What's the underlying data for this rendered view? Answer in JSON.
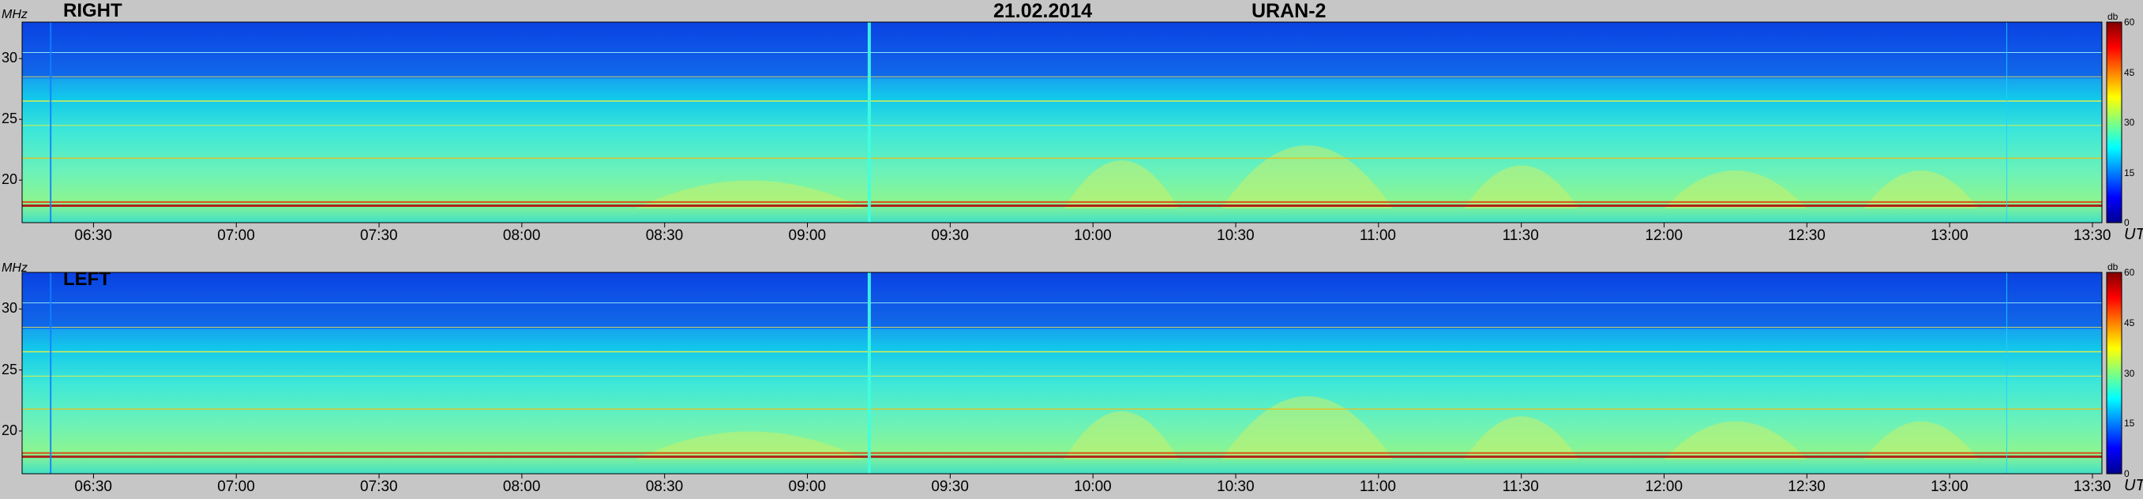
{
  "header": {
    "date": "21.02.2014",
    "instrument": "URAN-2"
  },
  "axis": {
    "y_label": "MHz",
    "x_label": "UT",
    "colorbar_label": "db"
  },
  "colors": {
    "background": "#c6c6c6",
    "colormap": [
      "#00008f",
      "#0000ff",
      "#0080ff",
      "#00ffff",
      "#80ff80",
      "#ffff00",
      "#ff8000",
      "#ff0000",
      "#800000"
    ]
  },
  "chart_data": [
    {
      "type": "heatmap",
      "panel_label": "RIGHT",
      "x_range": [
        "06:15",
        "13:32"
      ],
      "x_ticks": [
        "06:30",
        "07:00",
        "07:30",
        "08:00",
        "08:30",
        "09:00",
        "09:30",
        "10:00",
        "10:30",
        "11:00",
        "11:30",
        "12:00",
        "12:30",
        "13:00",
        "13:30"
      ],
      "y_range": [
        16.5,
        33
      ],
      "y_ticks": [
        "20",
        "25",
        "30"
      ],
      "colorbar_range": [
        0,
        60
      ],
      "colorbar_ticks": [
        "0",
        "15",
        "30",
        "45",
        "60"
      ]
    },
    {
      "type": "heatmap",
      "panel_label": "LEFT",
      "x_range": [
        "06:15",
        "13:32"
      ],
      "x_ticks": [
        "06:30",
        "07:00",
        "07:30",
        "08:00",
        "08:30",
        "09:00",
        "09:30",
        "10:00",
        "10:30",
        "11:00",
        "11:30",
        "12:00",
        "12:30",
        "13:00",
        "13:30"
      ],
      "y_range": [
        16.5,
        33
      ],
      "y_ticks": [
        "20",
        "25",
        "30"
      ],
      "colorbar_range": [
        0,
        60
      ],
      "colorbar_ticks": [
        "0",
        "15",
        "30",
        "45",
        "60"
      ]
    }
  ]
}
